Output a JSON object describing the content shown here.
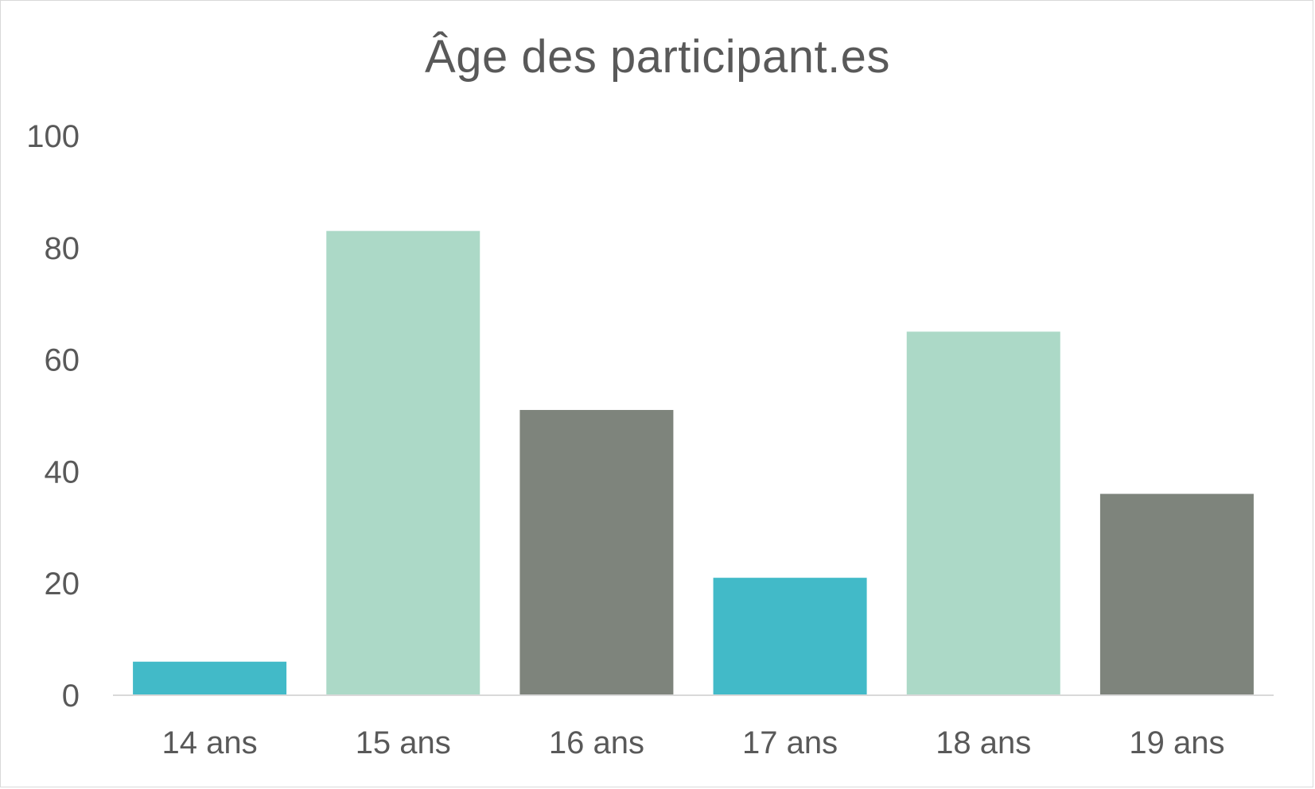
{
  "chart_data": {
    "type": "bar",
    "title": "Âge des participant.es",
    "categories": [
      "14 ans",
      "15 ans",
      "16 ans",
      "17 ans",
      "18 ans",
      "19 ans"
    ],
    "values": [
      6,
      83,
      51,
      21,
      65,
      36
    ],
    "bar_colors": [
      "#42bac8",
      "#acd9c7",
      "#7e847c",
      "#42bac8",
      "#acd9c7",
      "#7e847c"
    ],
    "ylim": [
      0,
      100
    ],
    "yticks": [
      "0",
      "20",
      "40",
      "60",
      "80",
      "100"
    ],
    "grid": false,
    "legend": "none"
  }
}
